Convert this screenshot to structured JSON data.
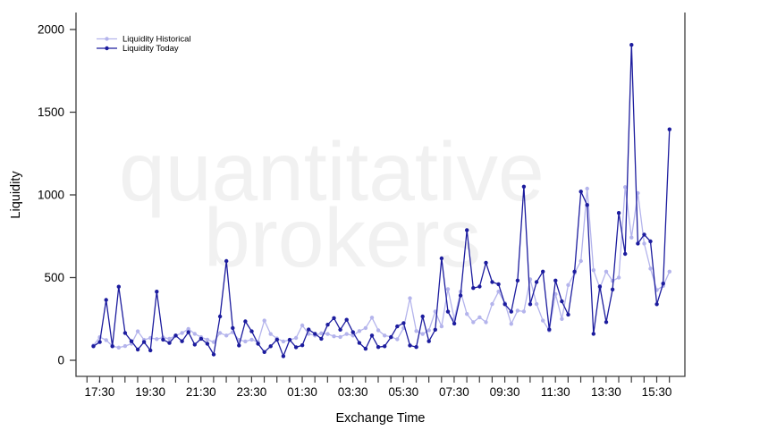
{
  "chart_data": {
    "type": "line",
    "title": "",
    "xlabel": "Exchange Time",
    "ylabel": "Liquidity",
    "ylim": [
      0,
      2000
    ],
    "y_ticks": [
      0,
      500,
      1000,
      1500,
      2000
    ],
    "x_tick_labels": [
      "17:30",
      "19:30",
      "21:30",
      "23:30",
      "01:30",
      "03:30",
      "05:30",
      "07:30",
      "09:30",
      "11:30",
      "13:30",
      "15:30"
    ],
    "grid": false,
    "legend_position": "top-left",
    "axis_color": "#3c3c3c",
    "text_color": "#000000",
    "x": [
      "17:15",
      "17:30",
      "17:45",
      "18:00",
      "18:15",
      "18:30",
      "18:45",
      "19:00",
      "19:15",
      "19:30",
      "19:45",
      "20:00",
      "20:15",
      "20:30",
      "20:45",
      "21:00",
      "21:15",
      "21:30",
      "21:45",
      "22:00",
      "22:15",
      "22:30",
      "22:45",
      "23:00",
      "23:15",
      "23:30",
      "23:45",
      "00:00",
      "00:15",
      "00:30",
      "00:45",
      "01:00",
      "01:15",
      "01:30",
      "01:45",
      "02:00",
      "02:15",
      "02:30",
      "02:45",
      "03:00",
      "03:15",
      "03:30",
      "03:45",
      "04:00",
      "04:15",
      "04:30",
      "04:45",
      "05:00",
      "05:15",
      "05:30",
      "05:45",
      "06:00",
      "06:15",
      "06:30",
      "06:45",
      "07:00",
      "07:15",
      "07:30",
      "07:45",
      "08:00",
      "08:15",
      "08:30",
      "08:45",
      "09:00",
      "09:15",
      "09:30",
      "09:45",
      "10:00",
      "10:15",
      "10:30",
      "10:45",
      "11:00",
      "11:15",
      "11:30",
      "11:45",
      "12:00",
      "12:15",
      "12:30",
      "12:45",
      "13:00",
      "13:15",
      "13:30",
      "13:45",
      "14:00",
      "14:15",
      "14:30",
      "14:45",
      "15:00",
      "15:15",
      "15:30",
      "15:45",
      "16:00"
    ],
    "series": [
      {
        "name": "Liquidity Historical",
        "color": "#b4b4ec",
        "values": [
          90,
          140,
          122,
          86,
          77,
          86,
          100,
          175,
          124,
          135,
          128,
          138,
          130,
          150,
          165,
          190,
          160,
          140,
          125,
          110,
          165,
          150,
          170,
          123,
          114,
          125,
          110,
          240,
          159,
          132,
          114,
          123,
          135,
          211,
          160,
          150,
          163,
          159,
          145,
          141,
          159,
          150,
          177,
          195,
          258,
          181,
          150,
          141,
          127,
          195,
          375,
          177,
          159,
          181,
          295,
          205,
          430,
          250,
          415,
          280,
          230,
          260,
          230,
          340,
          415,
          345,
          220,
          300,
          295,
          490,
          340,
          240,
          180,
          400,
          250,
          455,
          527,
          600,
          1038,
          545,
          437,
          536,
          480,
          500,
          1047,
          742,
          1011,
          706,
          554,
          425,
          450,
          536
        ]
      },
      {
        "name": "Liquidity Today",
        "color": "#1c1c9e",
        "values": [
          85,
          110,
          365,
          85,
          445,
          165,
          115,
          65,
          110,
          60,
          415,
          125,
          105,
          150,
          115,
          170,
          95,
          130,
          100,
          35,
          265,
          600,
          195,
          90,
          235,
          175,
          100,
          50,
          85,
          125,
          25,
          124,
          79,
          91,
          186,
          160,
          130,
          215,
          255,
          185,
          245,
          170,
          105,
          70,
          150,
          80,
          85,
          140,
          205,
          225,
          90,
          80,
          265,
          115,
          185,
          616,
          294,
          222,
          392,
          787,
          437,
          446,
          590,
          473,
          460,
          339,
          294,
          482,
          1050,
          339,
          473,
          536,
          186,
          482,
          356,
          276,
          536,
          1020,
          939,
          160,
          446,
          231,
          428,
          891,
          643,
          1907,
          706,
          760,
          719,
          339,
          464,
          1396
        ]
      }
    ],
    "watermark": {
      "line1": "quantitative",
      "line2": "brokers",
      "color": "#f1f1f1"
    },
    "legend": {
      "items": [
        "Liquidity Historical",
        "Liquidity Today"
      ]
    }
  }
}
